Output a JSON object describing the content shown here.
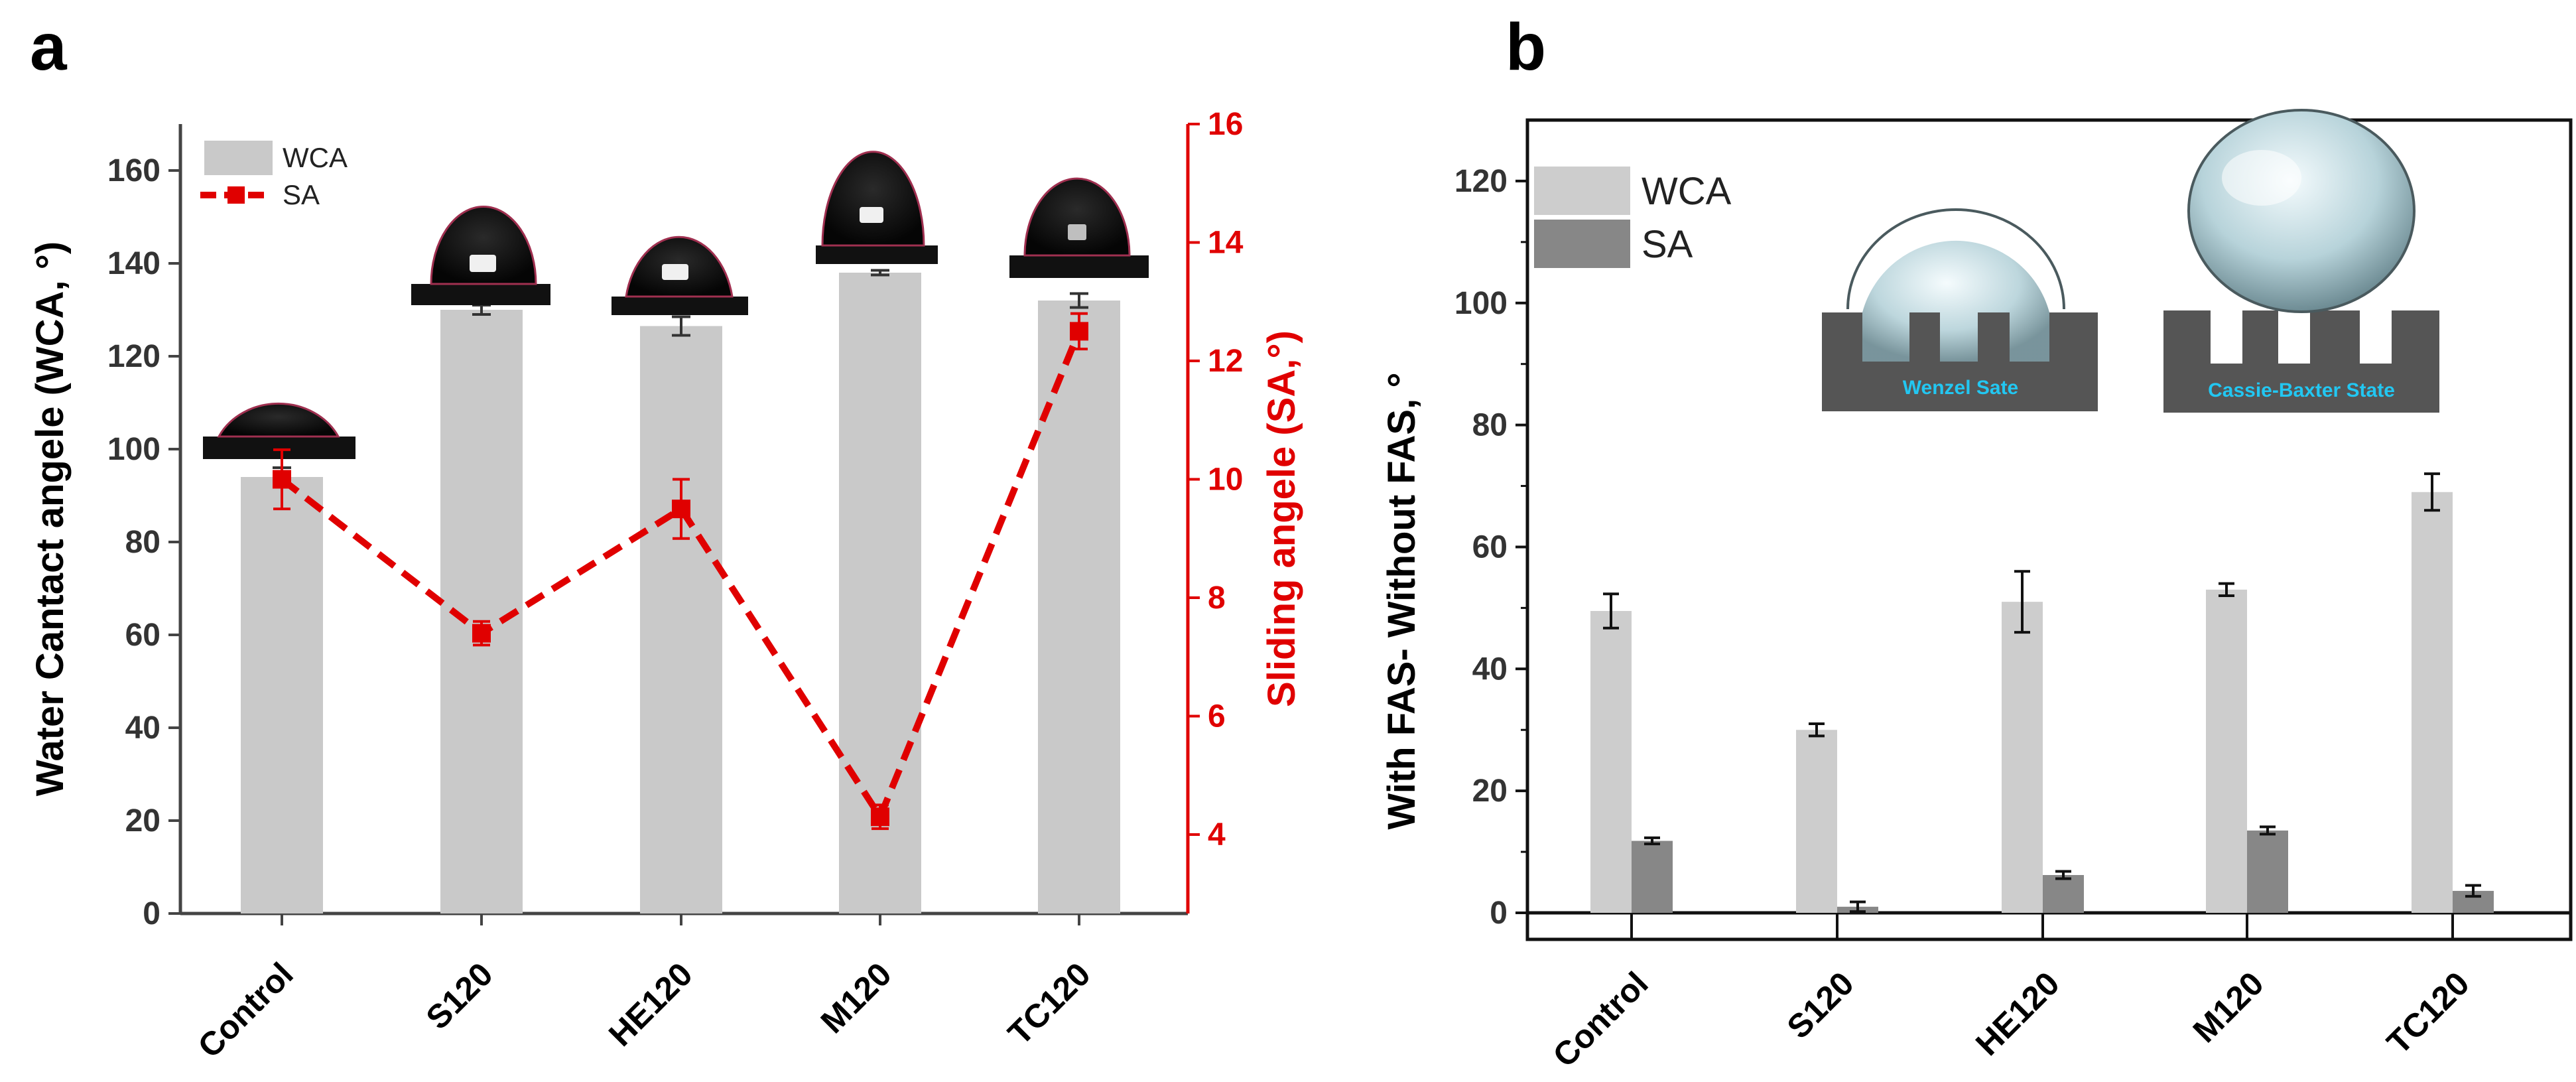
{
  "panels": {
    "a": "a",
    "b": "b"
  },
  "chart_data": [
    {
      "type": "bar",
      "panel": "a",
      "categories": [
        "Control",
        "S120",
        "HE120",
        "M120",
        "TC120"
      ],
      "series": [
        {
          "name": "WCA",
          "axis": "left",
          "kind": "bar",
          "color": "#c9c9c9",
          "values": [
            94,
            130,
            126.5,
            138,
            132
          ],
          "errors": [
            2,
            1,
            2,
            0.5,
            1.5
          ]
        },
        {
          "name": "SA",
          "axis": "right",
          "kind": "line",
          "style": "dashed",
          "marker": "square",
          "color": "#e00000",
          "values": [
            10,
            7.4,
            9.5,
            4.3,
            12.5
          ],
          "errors": [
            0.5,
            0.2,
            0.5,
            0.2,
            0.3
          ]
        }
      ],
      "ylabel": "Water Cantact angele (WCA, °)",
      "ylabel_right": "Sliding angele (SA,°)",
      "ylim": [
        0,
        170
      ],
      "yticks": [
        0,
        20,
        40,
        60,
        80,
        100,
        120,
        140,
        160
      ],
      "ylim_right": [
        2.667,
        16
      ],
      "yticks_right": [
        4,
        6,
        8,
        10,
        12,
        14,
        16
      ],
      "legend": [
        "WCA",
        "SA"
      ],
      "legend_position": "top-left",
      "inset_images": "water droplet photographs above each bar"
    },
    {
      "type": "bar",
      "panel": "b",
      "categories": [
        "Control",
        "S120",
        "HE120",
        "M120",
        "TC120"
      ],
      "series": [
        {
          "name": "WCA",
          "color": "#cdcdcd",
          "values": [
            49.5,
            30,
            51,
            53,
            69
          ],
          "errors": [
            2.8,
            1,
            5,
            1,
            3
          ]
        },
        {
          "name": "SA",
          "color": "#878787",
          "values": [
            11.8,
            1,
            6.2,
            13.5,
            3.6
          ],
          "errors": [
            0.5,
            0.8,
            0.6,
            0.6,
            0.9
          ]
        }
      ],
      "ylabel": "With FAS- Without FAS, °",
      "ylim": [
        0,
        130
      ],
      "yticks": [
        0,
        20,
        40,
        60,
        80,
        100,
        120
      ],
      "legend": [
        "WCA",
        "SA"
      ],
      "legend_position": "top-left",
      "insets": [
        {
          "name": "wenzel",
          "label": "Wenzel Sate"
        },
        {
          "name": "cassie",
          "label": "Cassie-Baxter State"
        }
      ]
    }
  ]
}
